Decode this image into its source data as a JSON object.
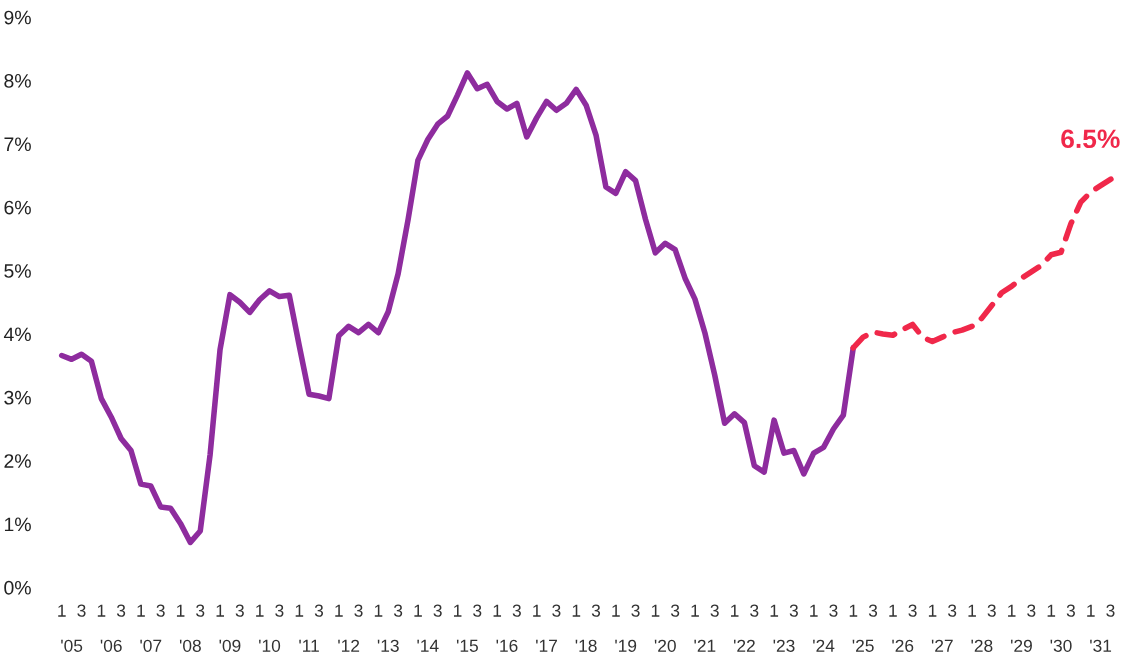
{
  "chart_data": {
    "type": "line",
    "categories": [
      "1",
      null,
      "3",
      null,
      "1",
      null,
      "3",
      null,
      "1",
      null,
      "3",
      null,
      "1",
      null,
      "3",
      null,
      "1",
      null,
      "3",
      null,
      "1",
      null,
      "3",
      null,
      "1",
      null,
      "3",
      null,
      "1",
      null,
      "3",
      null,
      "1",
      null,
      "3",
      null,
      "1",
      null,
      "3",
      null,
      "1",
      null,
      "3",
      null,
      "1",
      null,
      "3",
      null,
      "1",
      null,
      "3",
      null,
      "1",
      null,
      "3",
      null,
      "1",
      null,
      "3",
      null,
      "1",
      null,
      "3",
      null,
      "1",
      null,
      "3",
      null,
      "1",
      null,
      "3",
      null,
      "1",
      null,
      "3",
      null,
      "1",
      null,
      "3",
      null,
      "1",
      null,
      "3",
      null,
      "1",
      null,
      "3",
      null,
      "1",
      null,
      "3",
      null,
      "1",
      null,
      "3",
      null,
      "1",
      null,
      "3",
      null,
      "1",
      null,
      "3",
      null,
      "1",
      null,
      "3",
      null
    ],
    "series": [
      {
        "color": "#8e2c9e",
        "line_style": "solid",
        "values": [
          3.66,
          3.6,
          3.68,
          3.57,
          2.98,
          2.69,
          2.35,
          2.16,
          1.63,
          1.6,
          1.27,
          1.25,
          1.01,
          0.71,
          0.89,
          2.1,
          3.75,
          4.62,
          4.5,
          4.34,
          4.54,
          4.68,
          4.59,
          4.61,
          3.82,
          3.05,
          3.02,
          2.98,
          3.97,
          4.12,
          4.02,
          4.15,
          4.02,
          4.35,
          4.95,
          5.8,
          6.74,
          7.07,
          7.31,
          7.44,
          7.77,
          8.12,
          7.87,
          7.94,
          7.67,
          7.55,
          7.64,
          7.11,
          7.41,
          7.67,
          7.53,
          7.64,
          7.86,
          7.61,
          7.14,
          6.32,
          6.22,
          6.56,
          6.42,
          5.81,
          5.28,
          5.43,
          5.33,
          4.88,
          4.55,
          4.02,
          3.35,
          2.59,
          2.74,
          2.6,
          1.92,
          1.82,
          2.64,
          2.12,
          2.16,
          1.79,
          2.12,
          2.21,
          2.5,
          2.72,
          3.78,
          null,
          null,
          null,
          null,
          null,
          null,
          null,
          null,
          null,
          null,
          null,
          null,
          null,
          null,
          null,
          null,
          null,
          null,
          null,
          null,
          null,
          null,
          null,
          null,
          null,
          null,
          null
        ]
      },
      {
        "color": "#f0284a",
        "line_style": "dashed",
        "values": [
          null,
          null,
          null,
          null,
          null,
          null,
          null,
          null,
          null,
          null,
          null,
          null,
          null,
          null,
          null,
          null,
          null,
          null,
          null,
          null,
          null,
          null,
          null,
          null,
          null,
          null,
          null,
          null,
          null,
          null,
          null,
          null,
          null,
          null,
          null,
          null,
          null,
          null,
          null,
          null,
          null,
          null,
          null,
          null,
          null,
          null,
          null,
          null,
          null,
          null,
          null,
          null,
          null,
          null,
          null,
          null,
          null,
          null,
          null,
          null,
          null,
          null,
          null,
          null,
          null,
          null,
          null,
          null,
          null,
          null,
          null,
          null,
          null,
          null,
          null,
          null,
          null,
          null,
          null,
          null,
          3.78,
          3.95,
          4.03,
          4.0,
          3.98,
          4.07,
          4.15,
          3.95,
          3.88,
          3.95,
          4.02,
          4.06,
          4.12,
          4.25,
          4.45,
          4.65,
          4.75,
          4.88,
          4.98,
          5.08,
          5.25,
          5.29,
          5.74,
          6.08,
          6.24,
          6.34,
          6.44,
          6.5
        ]
      }
    ],
    "annotations": [
      "6.5%",
      "'05",
      "'06",
      "'07",
      "'08",
      "'09",
      "'10",
      "'11",
      "'12",
      "'13",
      "'14",
      "'15",
      "'16",
      "'17",
      "'18",
      "'19",
      "'20",
      "'21",
      "'22",
      "'23",
      "'24",
      "'25",
      "'26",
      "'27",
      "'28",
      "'29",
      "'30",
      "'31"
    ],
    "ylim": [
      0,
      9
    ],
    "yticks": [
      {
        "value": 0,
        "label": "0%"
      },
      {
        "value": 1,
        "label": "1%"
      },
      {
        "value": 2,
        "label": "2%"
      },
      {
        "value": 3,
        "label": "3%"
      },
      {
        "value": 4,
        "label": "4%"
      },
      {
        "value": 5,
        "label": "5%"
      },
      {
        "value": 6,
        "label": "6%"
      },
      {
        "value": 7,
        "label": "7%"
      },
      {
        "value": 8,
        "label": "8%"
      },
      {
        "value": 9,
        "label": "9%"
      }
    ]
  }
}
